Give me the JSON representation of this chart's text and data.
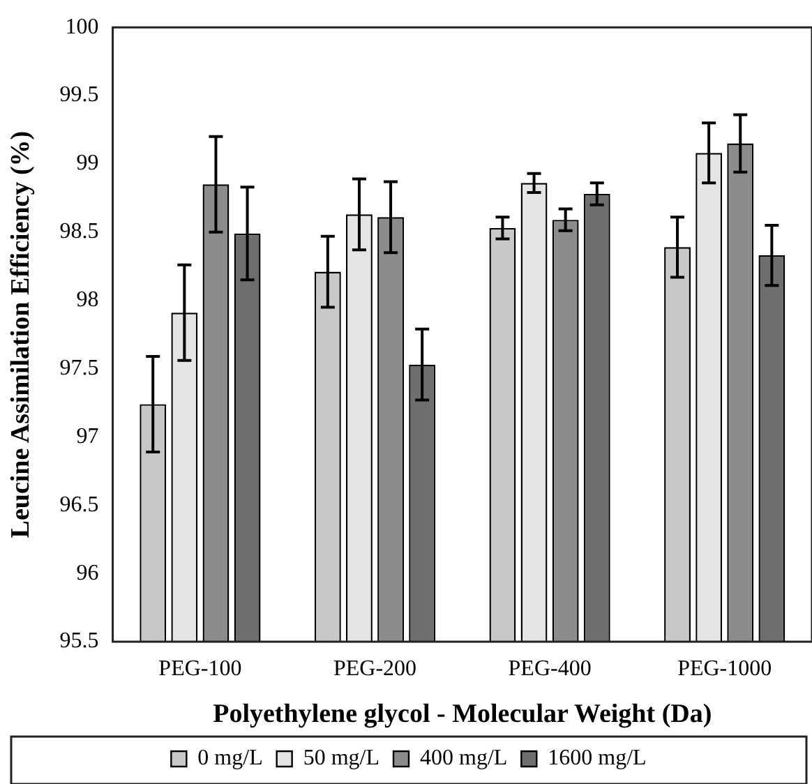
{
  "chart_data": {
    "type": "bar",
    "xlabel": "Polyethylene glycol - Molecular Weight (Da)",
    "ylabel": "Leucine Assimilation Efficiency (%)",
    "categories": [
      "PEG-100",
      "PEG-200",
      "PEG-400",
      "PEG-1000"
    ],
    "series": [
      {
        "name": "0 mg/L",
        "color": "#c8c8c8",
        "values": [
          97.24,
          98.21,
          98.53,
          98.39
        ],
        "errors": [
          0.35,
          0.26,
          0.08,
          0.22
        ]
      },
      {
        "name": "50 mg/L",
        "color": "#e4e4e4",
        "values": [
          97.91,
          98.63,
          98.86,
          99.08
        ],
        "errors": [
          0.35,
          0.26,
          0.07,
          0.22
        ]
      },
      {
        "name": "400 mg/L",
        "color": "#8c8c8c",
        "values": [
          98.85,
          98.61,
          98.59,
          99.15
        ],
        "errors": [
          0.35,
          0.26,
          0.08,
          0.21
        ]
      },
      {
        "name": "1600 mg/L",
        "color": "#6e6e6e",
        "values": [
          98.49,
          97.53,
          98.78,
          98.33
        ],
        "errors": [
          0.34,
          0.26,
          0.08,
          0.22
        ]
      }
    ],
    "ylim": [
      95.5,
      100
    ],
    "yticks": [
      95.5,
      96,
      96.5,
      97,
      97.5,
      98,
      98.5,
      99,
      99.5,
      100
    ],
    "grid": false,
    "legend": "bottom"
  }
}
